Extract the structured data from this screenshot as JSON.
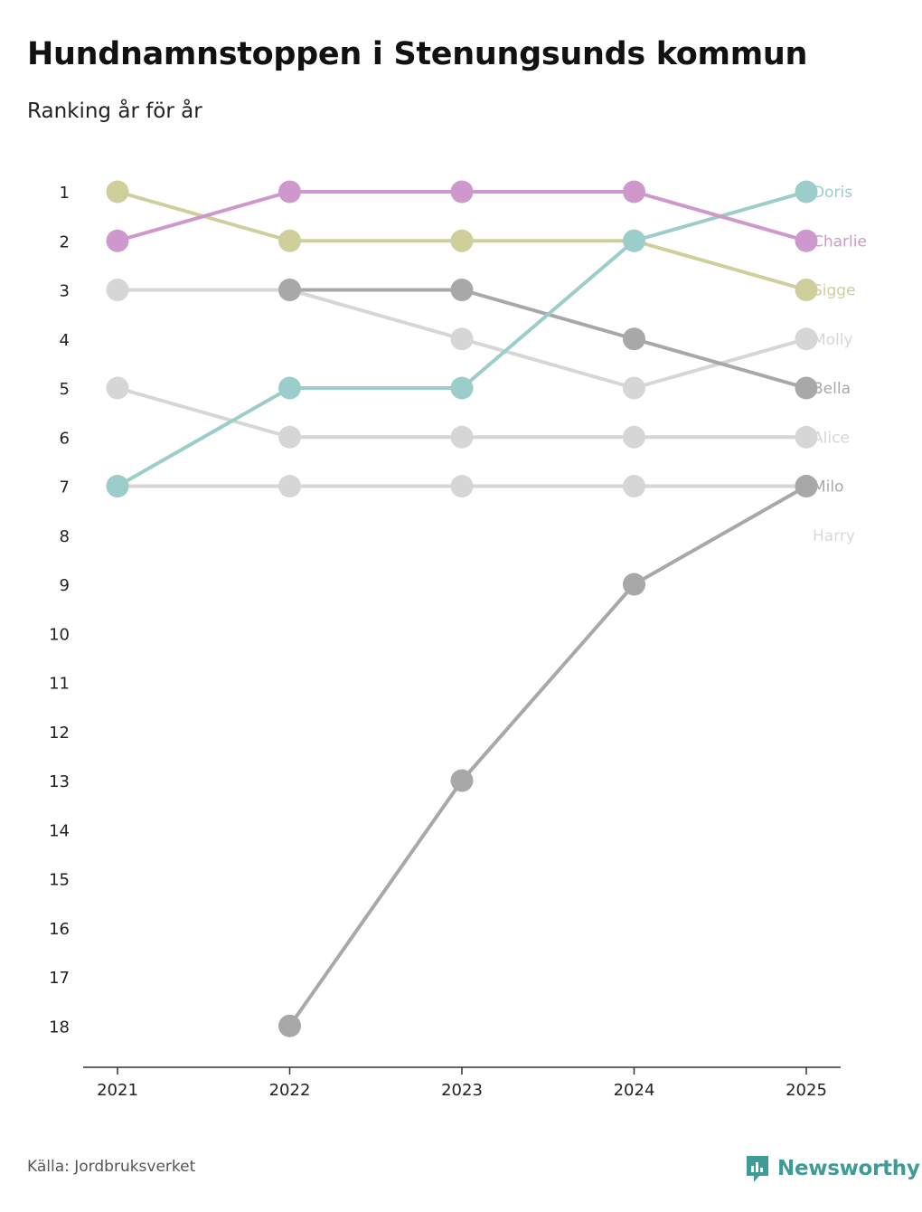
{
  "title": "Hundnamnstoppen i Stenungsunds kommun",
  "subtitle": "Ranking år för år",
  "source": "Källa: Jordbruksverket",
  "brand": {
    "name": "Newsworthy",
    "icon": "newsworthy-logo-icon",
    "color": "#3f9b96"
  },
  "chart_data": {
    "type": "line",
    "title": "Hundnamnstoppen i Stenungsunds kommun",
    "subtitle": "Ranking år för år",
    "xlabel": "",
    "ylabel": "",
    "x": [
      "2021",
      "2022",
      "2023",
      "2024",
      "2025"
    ],
    "y_ticks": [
      "1",
      "2",
      "3",
      "4",
      "5",
      "6",
      "7",
      "8",
      "9",
      "10",
      "11",
      "12",
      "13",
      "14",
      "15",
      "16",
      "17",
      "18"
    ],
    "ylim": [
      1,
      18
    ],
    "y_inverted": true,
    "grid": false,
    "series": [
      {
        "name": "Harry",
        "color": "#d9d9d9",
        "values": [
          null,
          null,
          null,
          null,
          null
        ]
      },
      {
        "name": "Alice",
        "color": "#d6d6d6",
        "values": [
          5,
          6,
          6,
          6,
          6
        ]
      },
      {
        "name": "Molly",
        "color": "#d6d6d6",
        "values": [
          3,
          3,
          4,
          5,
          4
        ]
      },
      {
        "name": "Milo",
        "color": "#d6d6d6",
        "values": [
          7,
          7,
          7,
          7,
          7
        ]
      },
      {
        "name": "Bella",
        "color": "#a8a8a8",
        "values": [
          null,
          3,
          3,
          4,
          5
        ]
      },
      {
        "name": "Milo-rise",
        "label": "",
        "color": "#a8a8a8",
        "values": [
          null,
          18,
          13,
          9,
          7
        ]
      },
      {
        "name": "Sigge",
        "color": "#cfcf9c",
        "values": [
          1,
          2,
          2,
          2,
          3
        ]
      },
      {
        "name": "Doris",
        "color": "#9bcdca",
        "values": [
          7,
          5,
          5,
          2,
          1
        ]
      },
      {
        "name": "Charlie",
        "color": "#cf98cd",
        "values": [
          2,
          1,
          1,
          1,
          2
        ]
      }
    ],
    "end_labels": [
      {
        "name": "Doris",
        "rank": 1,
        "color": "#9bcdca"
      },
      {
        "name": "Charlie",
        "rank": 2,
        "color": "#cf98cd"
      },
      {
        "name": "Sigge",
        "rank": 3,
        "color": "#cfcf9c"
      },
      {
        "name": "Molly",
        "rank": 4,
        "color": "#d6d6d6"
      },
      {
        "name": "Bella",
        "rank": 5,
        "color": "#a8a8a8"
      },
      {
        "name": "Alice",
        "rank": 6,
        "color": "#d6d6d6"
      },
      {
        "name": "Milo",
        "rank": 7,
        "color": "#a8a8a8"
      },
      {
        "name": "Harry",
        "rank": 8,
        "color": "#d9d9d9"
      }
    ]
  }
}
